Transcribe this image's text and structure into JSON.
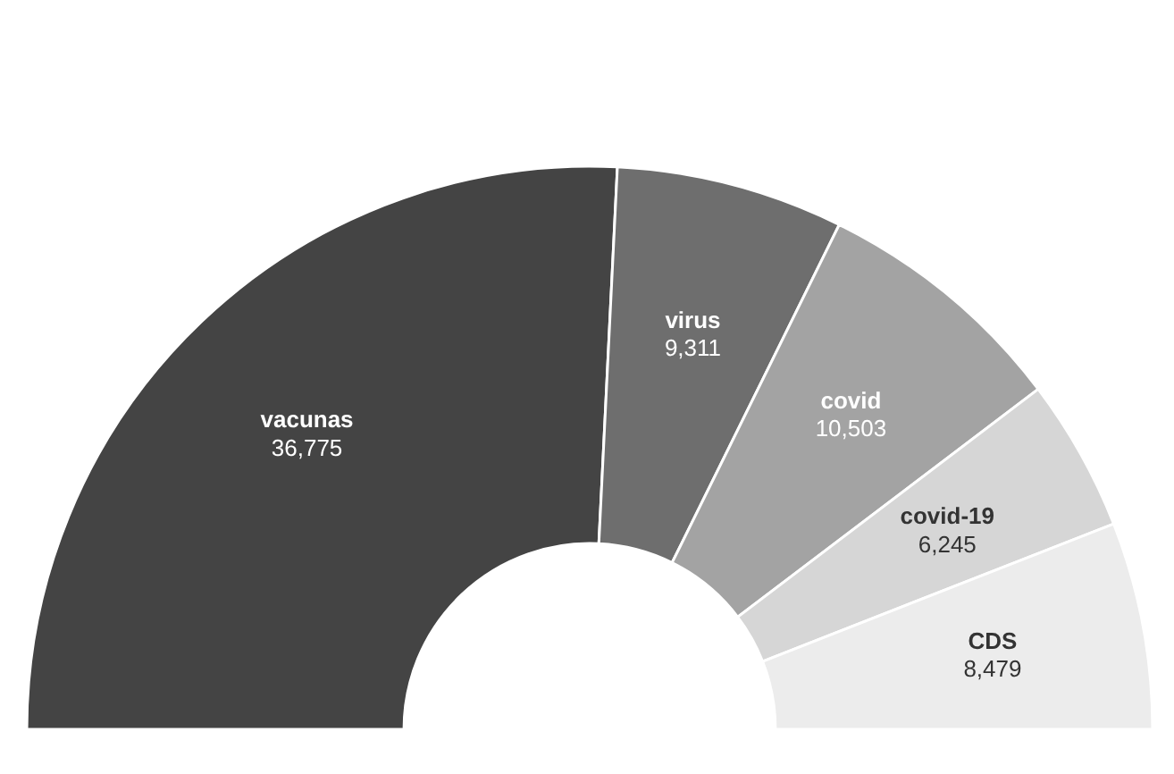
{
  "chart_data": {
    "type": "donut",
    "categories": [
      "vacunas",
      "virus",
      "covid",
      "covid-19",
      "CDS"
    ],
    "values": [
      36775,
      9311,
      10503,
      6245,
      8479
    ],
    "value_labels": [
      "36,775",
      "9,311",
      "10,503",
      "6,245",
      "8,479"
    ],
    "colors": [
      "#444444",
      "#6e6e6e",
      "#a3a3a3",
      "#d6d6d6",
      "#ececec"
    ]
  }
}
